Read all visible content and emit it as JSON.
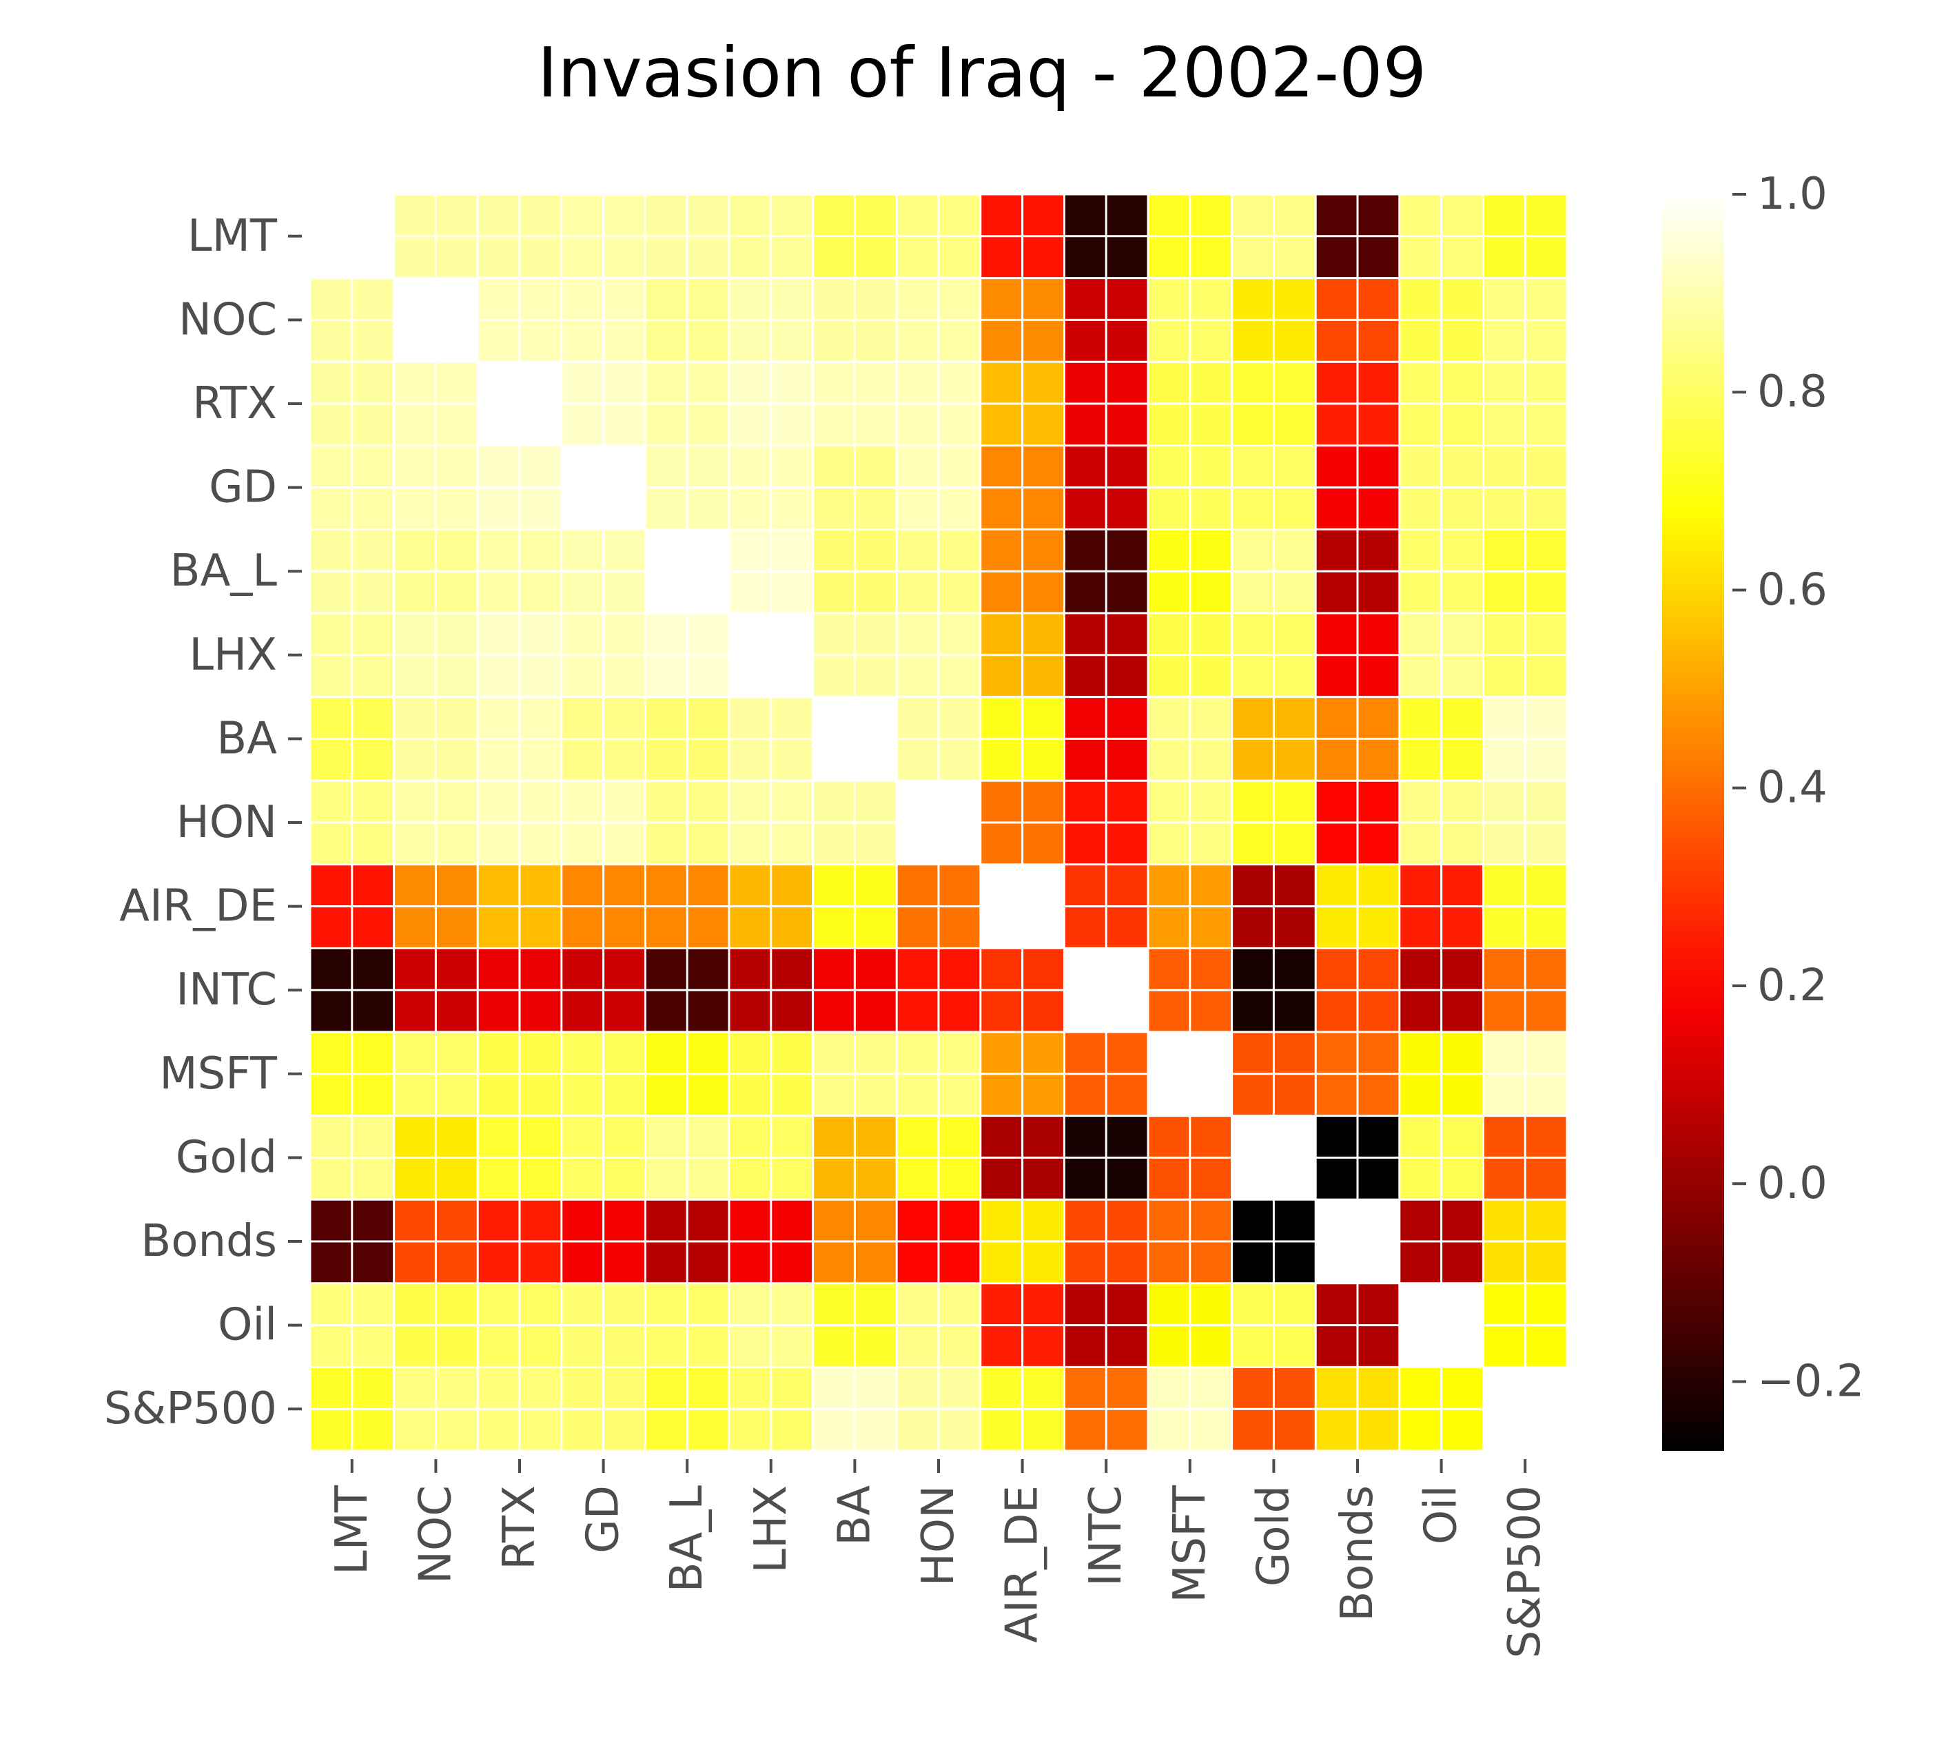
{
  "chart_data": {
    "type": "heatmap",
    "title": "Invasion of Iraq - 2002-09",
    "colormap": "hot",
    "labels": [
      "LMT",
      "NOC",
      "RTX",
      "GD",
      "BA_L",
      "LHX",
      "BA",
      "HON",
      "AIR_DE",
      "INTC",
      "MSFT",
      "Gold",
      "Bonds",
      "Oil",
      "S&P500"
    ],
    "matrix": [
      [
        1.0,
        0.88,
        0.88,
        0.89,
        0.88,
        0.87,
        0.78,
        0.84,
        0.23,
        -0.2,
        0.72,
        0.85,
        -0.12,
        0.83,
        0.73
      ],
      [
        0.88,
        1.0,
        0.91,
        0.91,
        0.86,
        0.9,
        0.88,
        0.89,
        0.46,
        0.1,
        0.81,
        0.64,
        0.33,
        0.77,
        0.84
      ],
      [
        0.88,
        0.91,
        1.0,
        0.93,
        0.89,
        0.93,
        0.91,
        0.91,
        0.55,
        0.16,
        0.77,
        0.74,
        0.25,
        0.8,
        0.83
      ],
      [
        0.89,
        0.91,
        0.93,
        1.0,
        0.9,
        0.91,
        0.85,
        0.91,
        0.45,
        0.1,
        0.79,
        0.8,
        0.18,
        0.82,
        0.82
      ],
      [
        0.88,
        0.86,
        0.89,
        0.9,
        1.0,
        0.94,
        0.82,
        0.85,
        0.45,
        -0.14,
        0.7,
        0.86,
        0.06,
        0.81,
        0.74
      ],
      [
        0.87,
        0.9,
        0.93,
        0.91,
        0.94,
        1.0,
        0.88,
        0.89,
        0.54,
        0.06,
        0.77,
        0.8,
        0.18,
        0.86,
        0.81
      ],
      [
        0.78,
        0.88,
        0.91,
        0.85,
        0.82,
        0.88,
        1.0,
        0.88,
        0.71,
        0.17,
        0.85,
        0.54,
        0.45,
        0.73,
        0.93
      ],
      [
        0.84,
        0.89,
        0.91,
        0.91,
        0.85,
        0.89,
        0.88,
        1.0,
        0.41,
        0.23,
        0.84,
        0.72,
        0.2,
        0.85,
        0.88
      ],
      [
        0.23,
        0.46,
        0.55,
        0.45,
        0.45,
        0.54,
        0.71,
        0.41,
        1.0,
        0.29,
        0.49,
        0.04,
        0.64,
        0.25,
        0.73
      ],
      [
        -0.2,
        0.1,
        0.16,
        0.1,
        -0.14,
        0.06,
        0.17,
        0.23,
        0.29,
        1.0,
        0.37,
        -0.23,
        0.33,
        0.06,
        0.4
      ],
      [
        0.72,
        0.81,
        0.77,
        0.79,
        0.7,
        0.77,
        0.85,
        0.84,
        0.49,
        0.37,
        1.0,
        0.35,
        0.39,
        0.67,
        0.92
      ],
      [
        0.85,
        0.64,
        0.74,
        0.8,
        0.86,
        0.8,
        0.54,
        0.72,
        0.04,
        -0.23,
        0.35,
        1.0,
        -0.27,
        0.78,
        0.35
      ],
      [
        -0.12,
        0.33,
        0.25,
        0.18,
        0.06,
        0.18,
        0.45,
        0.2,
        0.64,
        0.33,
        0.39,
        -0.27,
        1.0,
        0.05,
        0.62
      ],
      [
        0.83,
        0.77,
        0.8,
        0.82,
        0.81,
        0.86,
        0.73,
        0.85,
        0.25,
        0.06,
        0.67,
        0.78,
        0.05,
        1.0,
        0.68
      ],
      [
        0.73,
        0.84,
        0.83,
        0.82,
        0.74,
        0.81,
        0.93,
        0.88,
        0.73,
        0.4,
        0.92,
        0.35,
        0.62,
        0.68,
        1.0
      ]
    ],
    "colorbar": {
      "vmin": -0.27,
      "vmax": 1.0,
      "ticks": [
        -0.2,
        0.0,
        0.2,
        0.4,
        0.6,
        0.8,
        1.0
      ],
      "tick_labels": [
        "−0.2",
        "0.0",
        "0.2",
        "0.4",
        "0.6",
        "0.8",
        "1.0"
      ]
    },
    "grid": true
  }
}
